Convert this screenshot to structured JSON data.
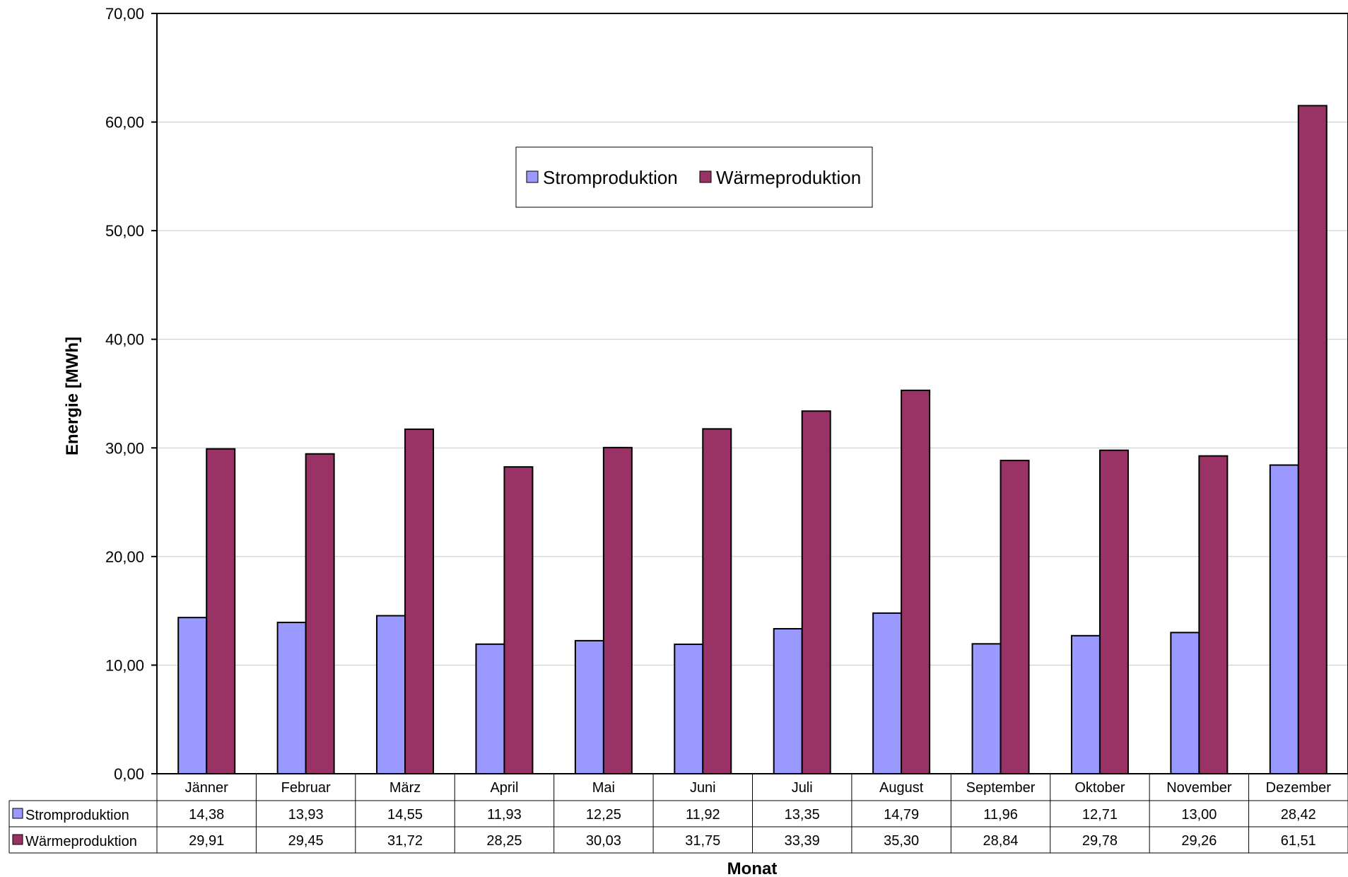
{
  "chart_data": {
    "type": "bar",
    "title": "",
    "xlabel": "Monat",
    "ylabel": "Energie [MWh]",
    "ylim": [
      0,
      70
    ],
    "yticks": [
      "0,00",
      "10,00",
      "20,00",
      "30,00",
      "40,00",
      "50,00",
      "60,00",
      "70,00"
    ],
    "grid": true,
    "legend_position": "top-center",
    "categories": [
      "Jänner",
      "Februar",
      "März",
      "April",
      "Mai",
      "Juni",
      "Juli",
      "August",
      "September",
      "Oktober",
      "November",
      "Dezember"
    ],
    "series": [
      {
        "name": "Stromproduktion",
        "color": "#9999FF",
        "values": [
          14.38,
          13.93,
          14.55,
          11.93,
          12.25,
          11.92,
          13.35,
          14.79,
          11.96,
          12.71,
          13.0,
          28.42
        ],
        "labels": [
          "14,38",
          "13,93",
          "14,55",
          "11,93",
          "12,25",
          "11,92",
          "13,35",
          "14,79",
          "11,96",
          "12,71",
          "13,00",
          "28,42"
        ]
      },
      {
        "name": "Wärmeproduktion",
        "color": "#993366",
        "values": [
          29.91,
          29.45,
          31.72,
          28.25,
          30.03,
          31.75,
          33.39,
          35.3,
          28.84,
          29.78,
          29.26,
          61.51
        ],
        "labels": [
          "29,91",
          "29,45",
          "31,72",
          "28,25",
          "30,03",
          "31,75",
          "33,39",
          "35,30",
          "28,84",
          "29,78",
          "29,26",
          "61,51"
        ]
      }
    ]
  }
}
